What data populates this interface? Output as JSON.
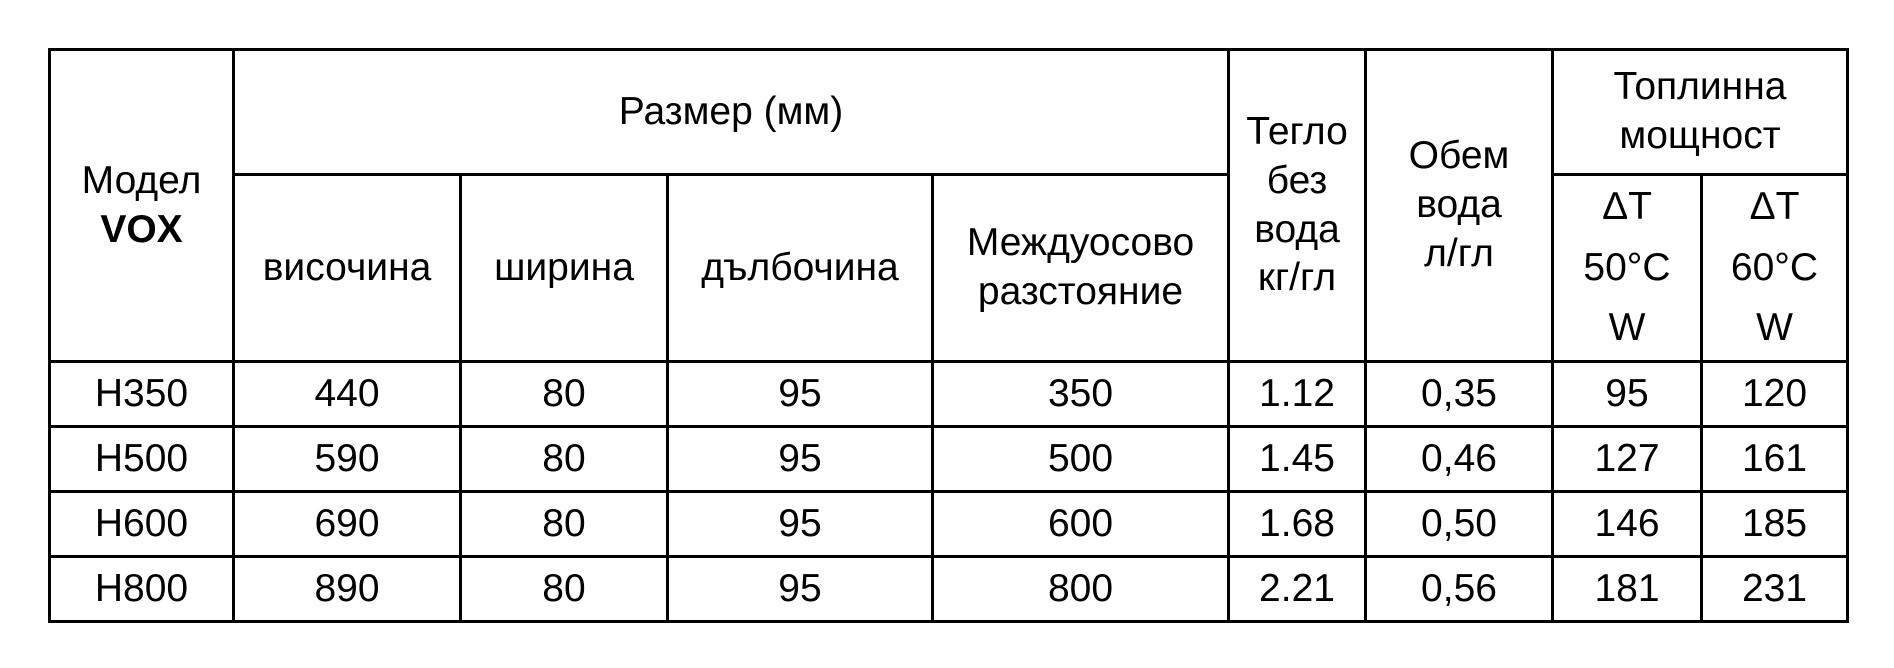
{
  "header": {
    "model": "Модел",
    "model_brand": "VOX",
    "size_group": "Размер (мм)",
    "height": "височина",
    "width": "ширина",
    "depth": "дълбочина",
    "axis_distance_1": "Междуосово",
    "axis_distance_2": "разстояние",
    "weight_1": "Тегло",
    "weight_2": "без",
    "weight_3": "вода",
    "weight_4": "кг/гл",
    "volume_1": "Обем",
    "volume_2": "вода",
    "volume_3": "л/гл",
    "power_group_1": "Топлинна",
    "power_group_2": "мощност",
    "dt50_1": "ΔT",
    "dt50_2": "50°C",
    "dt50_3": "W",
    "dt60_1": "ΔT",
    "dt60_2": "60°C",
    "dt60_3": "W"
  },
  "rows": [
    [
      "H350",
      "440",
      "80",
      "95",
      "350",
      "1.12",
      "0,35",
      "95",
      "120"
    ],
    [
      "H500",
      "590",
      "80",
      "95",
      "500",
      "1.45",
      "0,46",
      "127",
      "161"
    ],
    [
      "H600",
      "690",
      "80",
      "95",
      "600",
      "1.68",
      "0,50",
      "146",
      "185"
    ],
    [
      "H800",
      "890",
      "80",
      "95",
      "800",
      "2.21",
      "0,56",
      "181",
      "231"
    ]
  ]
}
